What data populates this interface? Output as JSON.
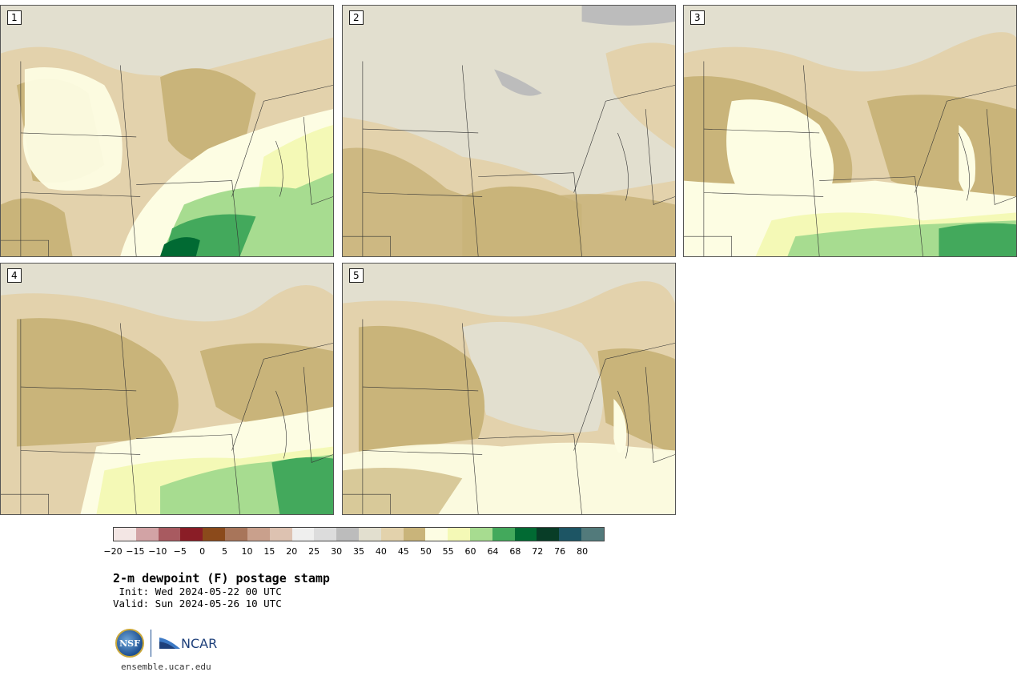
{
  "panels": [
    {
      "label": "1"
    },
    {
      "label": "2"
    },
    {
      "label": "3"
    },
    {
      "label": "4"
    },
    {
      "label": "5"
    }
  ],
  "colorbar": {
    "colors": [
      "#f3e6e4",
      "#d2a3a5",
      "#a85a60",
      "#8a1d26",
      "#8b4a1b",
      "#a8755a",
      "#c9a08c",
      "#ddc2b1",
      "#efefee",
      "#dcdcdc",
      "#bcbcbc",
      "#e2dfcf",
      "#e3d2ac",
      "#c9b47a",
      "#fdfde3",
      "#f4f9b6",
      "#a7dc90",
      "#43a95c",
      "#016a33",
      "#083d27",
      "#1d5564",
      "#527a7b"
    ],
    "tick_labels": [
      "−20",
      "−15",
      "−10",
      "−5",
      "0",
      "5",
      "10",
      "15",
      "20",
      "25",
      "30",
      "35",
      "40",
      "45",
      "50",
      "55",
      "60",
      "64",
      "68",
      "72",
      "76",
      "80"
    ]
  },
  "title": "2-m dewpoint (F) postage stamp",
  "init_line": " Init: Wed 2024-05-22 00 UTC",
  "valid_line": "Valid: Sun 2024-05-26 10 UTC",
  "logos": {
    "nsf_text": "NSF",
    "ncar_text": "NCAR"
  },
  "website": "ensemble.ucar.edu"
}
